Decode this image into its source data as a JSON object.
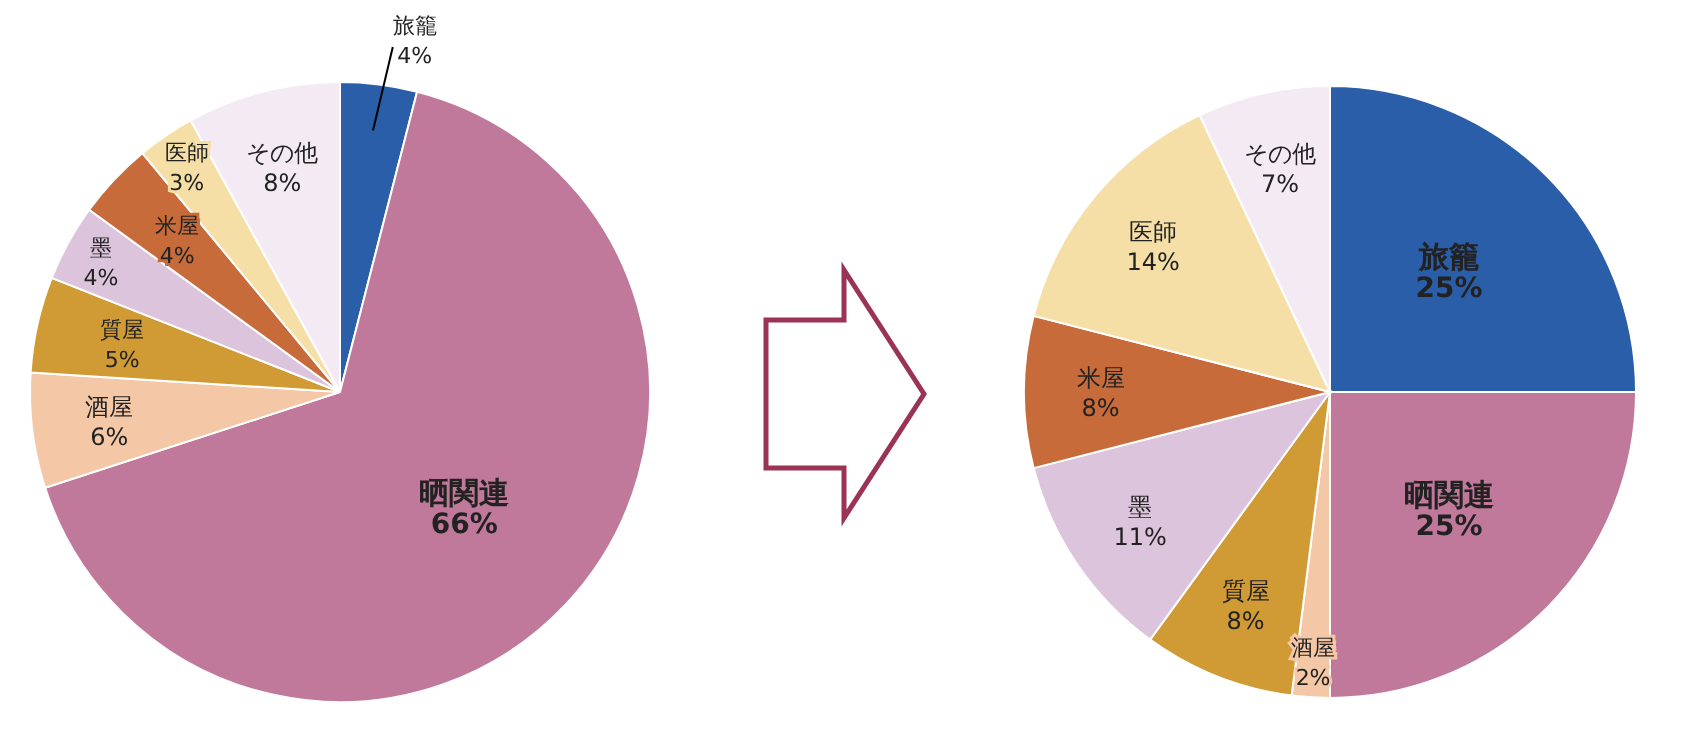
{
  "chart_data": [
    {
      "type": "pie",
      "categories": [
        "旅籠",
        "晒関連",
        "酒屋",
        "質屋",
        "墨",
        "米屋",
        "医師",
        "その他"
      ],
      "values": [
        4,
        66,
        6,
        5,
        4,
        4,
        3,
        8
      ],
      "value_labels": [
        "4%",
        "66%",
        "6%",
        "5%",
        "4%",
        "4%",
        "3%",
        "8%"
      ],
      "colors": [
        "#2b5ea8",
        "#c0799a",
        "#f4c8a6",
        "#d09a35",
        "#dcc4dc",
        "#c76b3b",
        "#f6dfa6",
        "#f4eaf4"
      ]
    },
    {
      "type": "pie",
      "categories": [
        "旅籠",
        "晒関連",
        "酒屋",
        "質屋",
        "墨",
        "米屋",
        "医師",
        "その他"
      ],
      "values": [
        25,
        25,
        2,
        8,
        11,
        8,
        14,
        7
      ],
      "value_labels": [
        "25%",
        "25%",
        "2%",
        "8%",
        "11%",
        "8%",
        "14%",
        "7%"
      ],
      "colors": [
        "#2b5ea8",
        "#c0799a",
        "#f4c8a6",
        "#d09a35",
        "#dcc4dc",
        "#c76b3b",
        "#f6dfa6",
        "#f4eaf4"
      ]
    }
  ]
}
